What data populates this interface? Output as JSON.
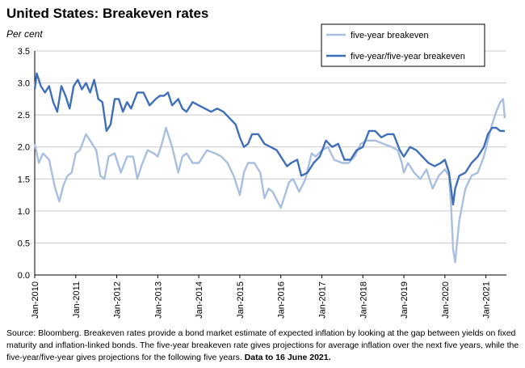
{
  "title": "United States: Breakeven rates",
  "unit_label": "Per cent",
  "source_text": "Source: Bloomberg.  Breakeven rates provide a bond market estimate of expected inflation by looking at the gap between yields on fixed maturity and inflation-linked bonds.  The five-year breakeven rate gives projections for average inflation over the next five years, while the five-year/five-year gives projections for the following five years.",
  "source_note": "Data to 16 June 2021.",
  "chart_data": {
    "type": "line",
    "title": "United States: Breakeven rates",
    "ylabel": "Per cent",
    "ylim": [
      0,
      3.5
    ],
    "yticks": [
      "0.0",
      "0.5",
      "1.0",
      "1.5",
      "2.0",
      "2.5",
      "3.0",
      "3.5"
    ],
    "xlim": [
      2010.0,
      2021.5
    ],
    "xticks": [
      "Jan-2010",
      "Jan-2011",
      "Jan-2012",
      "Jan-2013",
      "Jan-2014",
      "Jan-2015",
      "Jan-2016",
      "Jan-2017",
      "Jan-2018",
      "Jan-2019",
      "Jan-2020",
      "Jan-2021"
    ],
    "grid": "horizontal",
    "legend_position": "top-right",
    "series": [
      {
        "name": "five-year breakeven",
        "color": "#a9bfe0",
        "x": [
          2010.0,
          2010.1,
          2010.2,
          2010.35,
          2010.5,
          2010.6,
          2010.7,
          2010.8,
          2010.9,
          2011.0,
          2011.1,
          2011.25,
          2011.4,
          2011.5,
          2011.6,
          2011.7,
          2011.8,
          2011.95,
          2012.1,
          2012.25,
          2012.4,
          2012.5,
          2012.6,
          2012.75,
          2012.9,
          2013.0,
          2013.1,
          2013.2,
          2013.35,
          2013.5,
          2013.6,
          2013.7,
          2013.85,
          2014.0,
          2014.2,
          2014.4,
          2014.55,
          2014.7,
          2014.85,
          2015.0,
          2015.1,
          2015.2,
          2015.35,
          2015.5,
          2015.6,
          2015.7,
          2015.8,
          2016.0,
          2016.1,
          2016.2,
          2016.3,
          2016.45,
          2016.6,
          2016.75,
          2016.85,
          2017.0,
          2017.15,
          2017.3,
          2017.5,
          2017.65,
          2017.8,
          2017.95,
          2018.1,
          2018.3,
          2018.5,
          2018.7,
          2018.85,
          2018.95,
          2019.0,
          2019.1,
          2019.25,
          2019.4,
          2019.55,
          2019.7,
          2019.85,
          2020.0,
          2020.1,
          2020.15,
          2020.2,
          2020.25,
          2020.35,
          2020.5,
          2020.65,
          2020.8,
          2020.95,
          2021.05,
          2021.15,
          2021.25,
          2021.35,
          2021.42,
          2021.46
        ],
        "y": [
          2.05,
          1.75,
          1.9,
          1.8,
          1.35,
          1.15,
          1.4,
          1.55,
          1.6,
          1.9,
          1.95,
          2.2,
          2.05,
          1.95,
          1.55,
          1.5,
          1.85,
          1.9,
          1.6,
          1.85,
          1.85,
          1.5,
          1.7,
          1.95,
          1.9,
          1.85,
          2.05,
          2.3,
          2.0,
          1.6,
          1.85,
          1.9,
          1.75,
          1.75,
          1.95,
          1.9,
          1.85,
          1.75,
          1.55,
          1.25,
          1.6,
          1.75,
          1.75,
          1.6,
          1.2,
          1.35,
          1.3,
          1.05,
          1.25,
          1.45,
          1.5,
          1.3,
          1.5,
          1.9,
          1.85,
          1.95,
          2.0,
          1.8,
          1.75,
          1.75,
          1.85,
          2.05,
          2.1,
          2.1,
          2.05,
          2.0,
          1.95,
          1.75,
          1.6,
          1.75,
          1.6,
          1.5,
          1.65,
          1.35,
          1.55,
          1.65,
          1.55,
          1.1,
          0.4,
          0.2,
          0.85,
          1.35,
          1.55,
          1.6,
          1.85,
          2.1,
          2.35,
          2.55,
          2.7,
          2.75,
          2.45
        ]
      },
      {
        "name": "five-year/five-year breakeven",
        "color": "#3f6fb8",
        "x": [
          2010.0,
          2010.05,
          2010.15,
          2010.25,
          2010.35,
          2010.45,
          2010.55,
          2010.65,
          2010.75,
          2010.85,
          2010.95,
          2011.05,
          2011.15,
          2011.25,
          2011.35,
          2011.45,
          2011.55,
          2011.65,
          2011.75,
          2011.85,
          2011.95,
          2012.05,
          2012.15,
          2012.25,
          2012.35,
          2012.5,
          2012.65,
          2012.8,
          2012.95,
          2013.05,
          2013.15,
          2013.25,
          2013.35,
          2013.5,
          2013.6,
          2013.7,
          2013.85,
          2014.0,
          2014.15,
          2014.3,
          2014.45,
          2014.6,
          2014.75,
          2014.9,
          2015.0,
          2015.1,
          2015.2,
          2015.3,
          2015.45,
          2015.6,
          2015.75,
          2015.9,
          2016.05,
          2016.15,
          2016.25,
          2016.4,
          2016.5,
          2016.65,
          2016.8,
          2016.95,
          2017.1,
          2017.25,
          2017.4,
          2017.55,
          2017.7,
          2017.85,
          2018.0,
          2018.15,
          2018.3,
          2018.45,
          2018.6,
          2018.75,
          2018.9,
          2019.0,
          2019.15,
          2019.3,
          2019.45,
          2019.6,
          2019.75,
          2019.9,
          2020.0,
          2020.1,
          2020.2,
          2020.25,
          2020.35,
          2020.5,
          2020.65,
          2020.8,
          2020.95,
          2021.05,
          2021.15,
          2021.25,
          2021.35,
          2021.46
        ],
        "y": [
          2.9,
          3.15,
          2.95,
          2.85,
          2.95,
          2.7,
          2.55,
          2.95,
          2.8,
          2.6,
          2.95,
          3.05,
          2.9,
          3.0,
          2.85,
          3.05,
          2.75,
          2.7,
          2.25,
          2.35,
          2.75,
          2.75,
          2.55,
          2.7,
          2.6,
          2.85,
          2.85,
          2.65,
          2.75,
          2.8,
          2.8,
          2.85,
          2.65,
          2.75,
          2.6,
          2.55,
          2.7,
          2.65,
          2.6,
          2.55,
          2.6,
          2.55,
          2.45,
          2.35,
          2.15,
          2.0,
          2.05,
          2.2,
          2.2,
          2.05,
          2.0,
          1.95,
          1.8,
          1.7,
          1.75,
          1.8,
          1.55,
          1.6,
          1.75,
          1.85,
          2.1,
          2.0,
          2.05,
          1.8,
          1.8,
          1.95,
          2.0,
          2.25,
          2.25,
          2.15,
          2.2,
          2.2,
          1.95,
          1.85,
          2.0,
          1.95,
          1.85,
          1.75,
          1.7,
          1.75,
          1.8,
          1.6,
          1.1,
          1.35,
          1.55,
          1.6,
          1.75,
          1.85,
          2.0,
          2.2,
          2.3,
          2.3,
          2.25,
          2.25
        ]
      }
    ]
  }
}
